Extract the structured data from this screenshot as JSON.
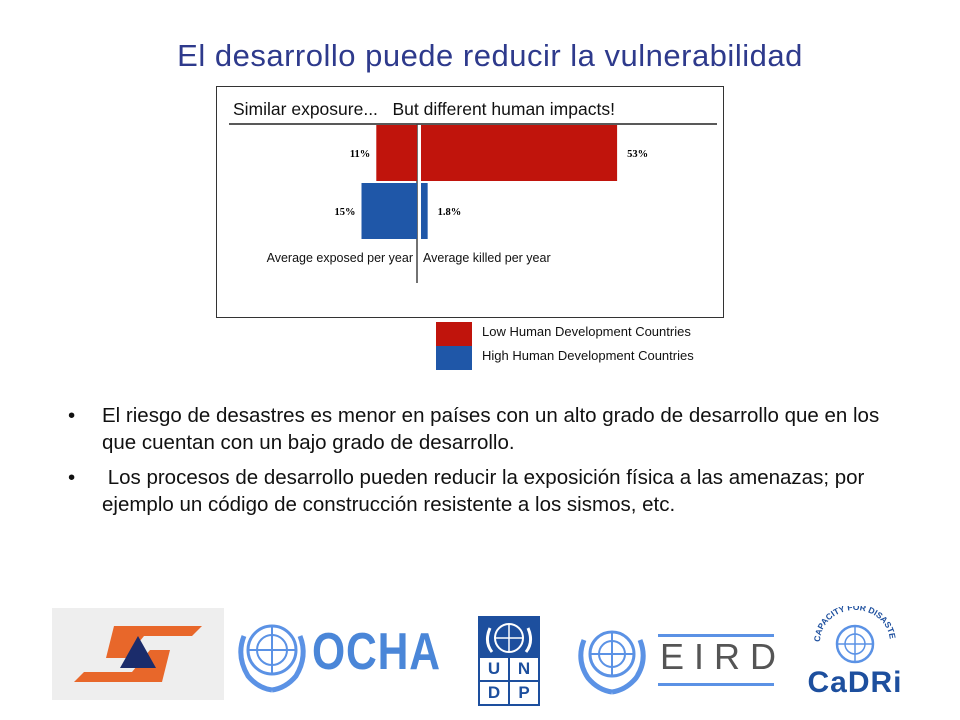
{
  "slide": {
    "title": "El desarrollo puede reducir la vulnerabilidad"
  },
  "chart_data": {
    "type": "bar",
    "title": "Similar exposure...   But different human impacts!",
    "left_panel_label": "Average exposed per year",
    "right_panel_label": "Average killed per year",
    "series": [
      {
        "name": "Low Human Development Countries",
        "color": "#c0140c",
        "exposed": 11,
        "killed": 53,
        "exposed_label": "11%",
        "killed_label": "53%"
      },
      {
        "name": "High Human Development Countries",
        "color": "#1f57a8",
        "exposed": 15,
        "killed": 1.8,
        "exposed_label": "15%",
        "killed_label": "1.8%"
      }
    ]
  },
  "legend": {
    "items": [
      {
        "label": "Low Human Development Countries",
        "color": "#c0140c"
      },
      {
        "label": "High Human Development Countries",
        "color": "#1f57a8"
      }
    ]
  },
  "bullets": [
    {
      "marker": "•",
      "text": "El riesgo de desastres es menor en países con un alto grado de desarrollo que en los que cuentan con un bajo grado de desarrollo."
    },
    {
      "marker": "•",
      "text": " Los procesos de desarrollo pueden reducir la exposición física a las amenazas; por ejemplo un código de construcción resistente a los sismos, etc."
    }
  ],
  "logos": {
    "ocha": "OCHA",
    "undp": [
      "U",
      "N",
      "D",
      "P"
    ],
    "eird": "EIRD",
    "cadri_ring": "CAPACITY FOR DISASTER REDUCTION INITIATIVE",
    "cadri": "CaDRi"
  }
}
